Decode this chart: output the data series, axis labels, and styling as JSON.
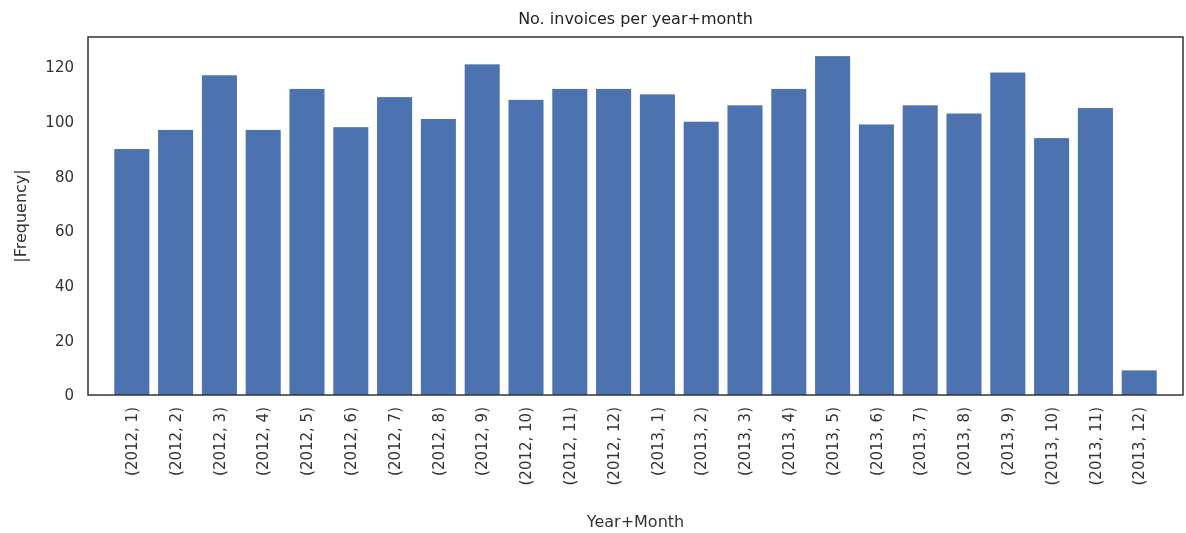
{
  "chart_data": {
    "type": "bar",
    "title": "No. invoices per year+month",
    "xlabel": "Year+Month",
    "ylabel": "|Frequency|",
    "categories": [
      "(2012, 1)",
      "(2012, 2)",
      "(2012, 3)",
      "(2012, 4)",
      "(2012, 5)",
      "(2012, 6)",
      "(2012, 7)",
      "(2012, 8)",
      "(2012, 9)",
      "(2012, 10)",
      "(2012, 11)",
      "(2012, 12)",
      "(2013, 1)",
      "(2013, 2)",
      "(2013, 3)",
      "(2013, 4)",
      "(2013, 5)",
      "(2013, 6)",
      "(2013, 7)",
      "(2013, 8)",
      "(2013, 9)",
      "(2013, 10)",
      "(2013, 11)",
      "(2013, 12)"
    ],
    "values": [
      90,
      97,
      117,
      97,
      112,
      98,
      109,
      101,
      121,
      108,
      112,
      112,
      110,
      100,
      106,
      112,
      124,
      99,
      106,
      103,
      118,
      94,
      105,
      9
    ],
    "color": "#4c72b0",
    "ylim": [
      0,
      131
    ],
    "yticks": [
      0,
      20,
      40,
      60,
      80,
      100,
      120
    ],
    "grid": false
  }
}
